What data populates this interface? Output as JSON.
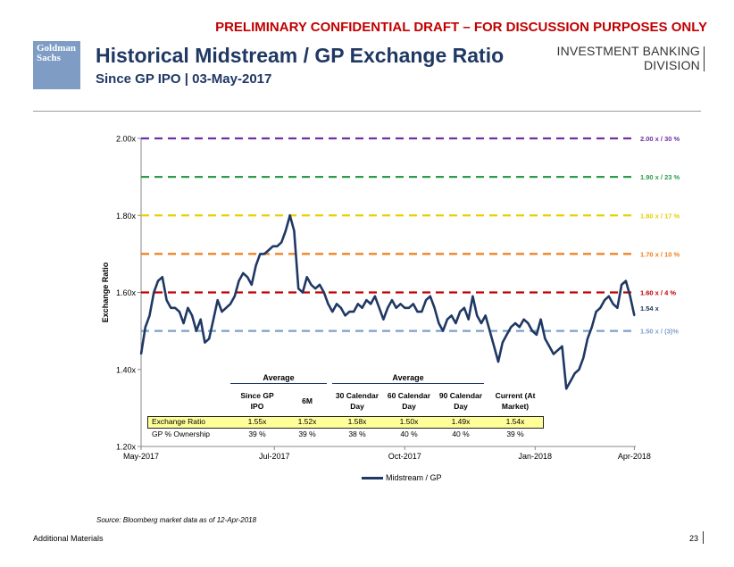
{
  "header": {
    "draft_notice": "PRELIMINARY CONFIDENTIAL DRAFT – FOR DISCUSSION PURPOSES ONLY",
    "logo_line1": "Goldman",
    "logo_line2": "Sachs",
    "title": "Historical Midstream / GP Exchange Ratio",
    "subtitle": "Since GP IPO | 03-May-2017",
    "division_line1": "INVESTMENT BANKING",
    "division_line2": "DIVISION"
  },
  "colors": {
    "series": "#1f3864",
    "ref_200": "#7030a0",
    "ref_190": "#2e9b4a",
    "ref_180": "#e8cf00",
    "ref_170": "#f07d18",
    "ref_160": "#c00000",
    "ref_150": "#7f9fc8"
  },
  "chart_data": {
    "type": "line",
    "title": "",
    "xlabel": "",
    "ylabel": "Exchange Ratio",
    "ylim": [
      1.2,
      2.0
    ],
    "yticks": [
      "1.20x",
      "1.40x",
      "1.60x",
      "1.80x",
      "2.00x"
    ],
    "xlim_days": [
      0,
      349
    ],
    "xticks": [
      {
        "label": "May-2017",
        "day": 0
      },
      {
        "label": "Jul-2017",
        "day": 94
      },
      {
        "label": "Oct-2017",
        "day": 186
      },
      {
        "label": "Jan-2018",
        "day": 278
      },
      {
        "label": "Apr-2018",
        "day": 348
      }
    ],
    "reference_lines": [
      {
        "value": 2.0,
        "label": "2.00 x  / 30 %",
        "color_key": "ref_200"
      },
      {
        "value": 1.9,
        "label": "1.90 x  / 23 %",
        "color_key": "ref_190"
      },
      {
        "value": 1.8,
        "label": "1.80 x  / 17 %",
        "color_key": "ref_180"
      },
      {
        "value": 1.7,
        "label": "1.70 x  / 10 %",
        "color_key": "ref_170"
      },
      {
        "value": 1.6,
        "label": "1.60 x  / 4 %",
        "color_key": "ref_160"
      },
      {
        "value": 1.5,
        "label": "1.50 x  / (3)%",
        "color_key": "ref_150"
      }
    ],
    "current_label": "1.54 x",
    "series": [
      {
        "name": "Midstream / GP",
        "x": [
          0,
          3,
          6,
          9,
          12,
          15,
          18,
          21,
          24,
          27,
          30,
          33,
          36,
          39,
          42,
          45,
          48,
          51,
          54,
          57,
          60,
          63,
          66,
          69,
          72,
          75,
          78,
          81,
          84,
          87,
          90,
          93,
          96,
          99,
          102,
          105,
          108,
          111,
          114,
          117,
          120,
          123,
          126,
          129,
          132,
          135,
          138,
          141,
          144,
          147,
          150,
          153,
          156,
          159,
          162,
          165,
          168,
          171,
          174,
          177,
          180,
          183,
          186,
          189,
          192,
          195,
          198,
          201,
          204,
          207,
          210,
          213,
          216,
          219,
          222,
          225,
          228,
          231,
          234,
          237,
          240,
          243,
          246,
          249,
          252,
          255,
          258,
          261,
          264,
          267,
          270,
          273,
          276,
          279,
          282,
          285,
          288,
          291,
          294,
          297,
          300,
          303,
          306,
          309,
          312,
          315,
          318,
          321,
          324,
          327,
          330,
          333,
          336,
          339,
          342,
          345,
          348
        ],
        "values": [
          1.44,
          1.51,
          1.54,
          1.6,
          1.63,
          1.64,
          1.58,
          1.56,
          1.56,
          1.55,
          1.52,
          1.56,
          1.54,
          1.5,
          1.53,
          1.47,
          1.48,
          1.53,
          1.58,
          1.55,
          1.56,
          1.57,
          1.59,
          1.63,
          1.65,
          1.64,
          1.62,
          1.67,
          1.7,
          1.7,
          1.71,
          1.72,
          1.72,
          1.73,
          1.76,
          1.8,
          1.76,
          1.61,
          1.6,
          1.64,
          1.62,
          1.61,
          1.62,
          1.6,
          1.57,
          1.55,
          1.57,
          1.56,
          1.54,
          1.55,
          1.55,
          1.57,
          1.56,
          1.58,
          1.57,
          1.59,
          1.56,
          1.53,
          1.56,
          1.58,
          1.56,
          1.57,
          1.56,
          1.56,
          1.57,
          1.55,
          1.55,
          1.58,
          1.59,
          1.56,
          1.52,
          1.5,
          1.53,
          1.54,
          1.52,
          1.55,
          1.56,
          1.53,
          1.59,
          1.54,
          1.52,
          1.54,
          1.5,
          1.46,
          1.42,
          1.47,
          1.49,
          1.51,
          1.52,
          1.51,
          1.53,
          1.52,
          1.5,
          1.49,
          1.53,
          1.48,
          1.46,
          1.44,
          1.45,
          1.46,
          1.35,
          1.37,
          1.39,
          1.4,
          1.43,
          1.48,
          1.51,
          1.55,
          1.56,
          1.58,
          1.59,
          1.57,
          1.56,
          1.62,
          1.63,
          1.59,
          1.54
        ]
      }
    ]
  },
  "table": {
    "group1_label": "Average",
    "group2_label": "Average",
    "col_headers": [
      "Since GP IPO",
      "6M",
      "30 Calendar Day",
      "60 Calendar Day",
      "90 Calendar Day",
      "Current (At Market)"
    ],
    "col_headers_split": [
      [
        "Since GP",
        "IPO"
      ],
      [
        "6M",
        ""
      ],
      [
        "30 Calendar",
        "Day"
      ],
      [
        "60 Calendar",
        "Day"
      ],
      [
        "90 Calendar",
        "Day"
      ],
      [
        "Current (At",
        "Market)"
      ]
    ],
    "row1_label": "Exchange Ratio",
    "row1_values": [
      "1.55x",
      "1.52x",
      "1.58x",
      "1.50x",
      "1.49x",
      "1.54x"
    ],
    "row2_label": "GP % Ownership",
    "row2_values": [
      "39 %",
      "39 %",
      "38 %",
      "40 %",
      "40 %",
      "39 %"
    ]
  },
  "legend_label": "Midstream / GP",
  "source_note": "Source: Bloomberg market data as of 12-Apr-2018",
  "footer": {
    "left": "Additional Materials",
    "page_number": "23"
  }
}
